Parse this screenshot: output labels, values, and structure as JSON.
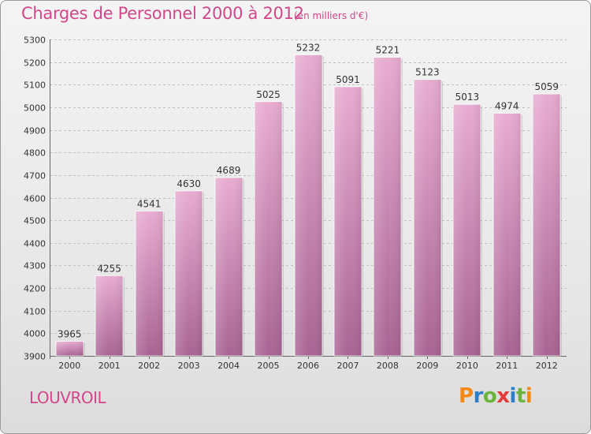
{
  "header": {
    "title": "Charges de Personnel 2000 à 2012",
    "subtitle": "(en milliers d'€)"
  },
  "footer": {
    "city": "LOUVROIL",
    "logo_text": "Proxiti"
  },
  "colors": {
    "title": "#d1478a",
    "bar_top": "#e8acd1",
    "bar_bottom": "#a86493",
    "grid": "#c0c0c0",
    "logo_letters": [
      "#f28a1a",
      "#2f7fc8",
      "#6ab43e",
      "#e23b3b",
      "#2f7fc8",
      "#6ab43e",
      "#f28a1a"
    ]
  },
  "chart_data": {
    "type": "bar",
    "title": "Charges de Personnel 2000 à 2012",
    "subtitle": "(en milliers d'€)",
    "categories": [
      "2000",
      "2001",
      "2002",
      "2003",
      "2004",
      "2005",
      "2006",
      "2007",
      "2008",
      "2009",
      "2010",
      "2011",
      "2012"
    ],
    "values": [
      3965,
      4255,
      4541,
      4630,
      4689,
      5025,
      5232,
      5091,
      5221,
      5123,
      5013,
      4974,
      5059
    ],
    "ylim": [
      3900,
      5300
    ],
    "yticks": [
      3900,
      4000,
      4100,
      4200,
      4300,
      4400,
      4500,
      4600,
      4700,
      4800,
      4900,
      5000,
      5100,
      5200,
      5300
    ],
    "grid": true,
    "data_labels": true
  }
}
